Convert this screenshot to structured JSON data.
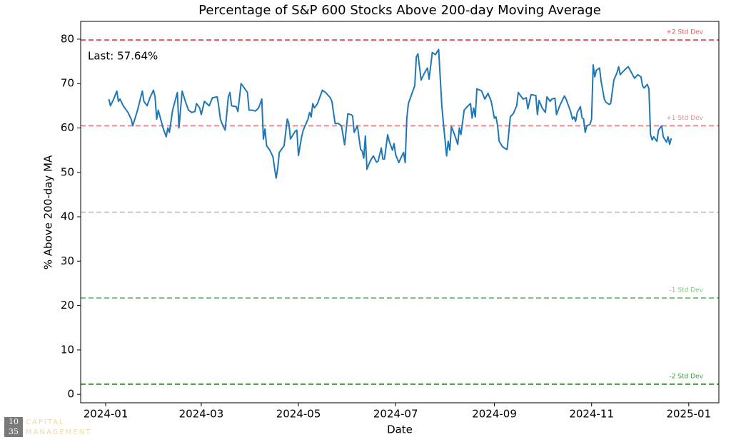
{
  "chart_data": {
    "type": "line",
    "title": "Percentage of S&P 600 Stocks Above 200-day Moving Average",
    "xlabel": "Date",
    "ylabel": "% Above 200-day MA",
    "annotation": "Last: 57.64%",
    "color": "#1f77b4",
    "x": [
      2,
      3,
      5,
      7,
      8,
      9,
      11,
      14,
      16,
      17,
      20,
      23,
      24,
      26,
      28,
      30,
      31,
      32,
      33,
      36,
      38,
      39,
      40,
      42,
      45,
      46,
      48,
      50,
      52,
      54,
      56,
      57,
      59,
      60,
      62,
      65,
      67,
      70,
      71,
      72,
      73,
      75,
      77,
      78,
      79,
      82,
      83,
      85,
      87,
      89,
      90,
      92,
      94,
      96,
      98,
      99,
      100,
      101,
      103,
      105,
      106,
      107,
      108,
      109,
      112,
      114,
      115,
      116,
      119,
      120,
      121,
      123,
      124,
      127,
      128,
      129,
      130,
      131,
      133,
      135,
      136,
      138,
      141,
      142,
      144,
      146,
      148,
      150,
      152,
      154,
      155,
      156,
      158,
      160,
      161,
      162,
      163,
      164,
      166,
      168,
      170,
      171,
      173,
      174,
      175,
      177,
      178,
      180,
      181,
      182,
      184,
      185,
      187,
      188,
      189,
      190,
      192,
      194,
      195,
      196,
      198,
      200,
      202,
      203,
      205,
      207,
      209,
      211,
      212,
      214,
      215,
      216,
      217,
      219,
      221,
      222,
      223,
      225,
      227,
      229,
      230,
      231,
      232,
      233,
      235,
      236,
      238,
      240,
      242,
      244,
      245,
      246,
      247,
      249,
      251,
      252,
      254,
      256,
      258,
      259,
      261,
      262,
      264,
      265,
      267,
      270,
      271,
      272,
      274,
      276,
      277,
      279,
      280,
      282,
      283,
      285,
      287,
      288,
      289,
      290,
      292,
      293,
      294,
      295,
      296,
      298,
      299,
      300,
      301,
      302,
      304,
      305,
      306,
      307,
      308,
      310,
      311,
      313,
      314,
      316,
      317,
      319,
      321,
      322,
      323,
      325,
      327,
      328,
      330,
      331,
      332,
      334,
      336,
      337,
      338,
      340,
      341,
      342,
      343,
      344,
      346,
      347,
      349,
      350,
      352,
      353,
      354,
      355
    ],
    "values": [
      66.5,
      65,
      66.5,
      68.3,
      66,
      66.5,
      65,
      63.5,
      62,
      60.5,
      64,
      68.3,
      66,
      65,
      67,
      68.5,
      67,
      62,
      64,
      60,
      58,
      60,
      59,
      64,
      68,
      60,
      68.3,
      66,
      64,
      63.5,
      63.7,
      65.5,
      64.5,
      63,
      66,
      65,
      66.8,
      67,
      64.8,
      62,
      61,
      59.5,
      67,
      68,
      65,
      64.8,
      63.7,
      70,
      69,
      68,
      64,
      64,
      63.8,
      64.5,
      66.5,
      57.5,
      59.8,
      56,
      55,
      53.5,
      51,
      48.7,
      51,
      54.5,
      56,
      62,
      61,
      57.5,
      59.3,
      59.5,
      53.8,
      58,
      59.5,
      62,
      63.5,
      62.5,
      65.5,
      64.5,
      65.5,
      67.5,
      68.5,
      68,
      66.8,
      66,
      61,
      61,
      60.5,
      56.2,
      63.2,
      63,
      62.7,
      59,
      60.5,
      55.2,
      54.8,
      53.2,
      58.2,
      50.7,
      52.5,
      53.7,
      52.3,
      52.5,
      55.5,
      53,
      53,
      58.5,
      57,
      55,
      56.5,
      54,
      52.2,
      53,
      54.5,
      52.2,
      62,
      65.5,
      67.5,
      69.5,
      76,
      76.7,
      70.8,
      72.3,
      73.5,
      71,
      77,
      76.5,
      77.7,
      65,
      61,
      53.7,
      57,
      55,
      60.3,
      58.5,
      56.3,
      60,
      58.5,
      64,
      64.8,
      65.5,
      62.2,
      64.5,
      62.5,
      68.8,
      68.5,
      68.3,
      66.5,
      67.8,
      66,
      62.2,
      62.5,
      60.5,
      57,
      55.8,
      55.3,
      55.2,
      62.5,
      63.3,
      65,
      68,
      67,
      66.5,
      66.8,
      64.3,
      67.5,
      67.3,
      63,
      66.2,
      64.5,
      63.5,
      67,
      66,
      66.5,
      66.7,
      63,
      65,
      66.5,
      67.2,
      66.5,
      65.5,
      63.5,
      62,
      62.5,
      61.5,
      63.5,
      64.8,
      62.3,
      62,
      59,
      60.5,
      60.8,
      62,
      74.2,
      71.5,
      73,
      73.5,
      70.5,
      66.5,
      65.8,
      65.3,
      65.5,
      70.8,
      72.5,
      73.8,
      72,
      72.8,
      73.5,
      73.8,
      72.5,
      71.8,
      71.2,
      72,
      71.5,
      69.5,
      69,
      69.8,
      68.8,
      58.5,
      57.3,
      58,
      57,
      59.5,
      60.5,
      58,
      56.8,
      58,
      56.3,
      57.64
    ],
    "xlim": [
      -15.7,
      384.9
    ],
    "xticks": [
      {
        "value": 0,
        "label": "2024-01"
      },
      {
        "value": 60,
        "label": "2024-03"
      },
      {
        "value": 121,
        "label": "2024-05"
      },
      {
        "value": 182,
        "label": "2024-07"
      },
      {
        "value": 244,
        "label": "2024-09"
      },
      {
        "value": 305,
        "label": "2024-11"
      },
      {
        "value": 366,
        "label": "2025-01"
      }
    ],
    "ylim": [
      -1.9,
      84
    ],
    "yticks": [
      0,
      10,
      20,
      30,
      40,
      50,
      60,
      70,
      80
    ],
    "hlines": [
      {
        "value": 79.8,
        "label": "+2 Std Dev",
        "color": "#e05a5a"
      },
      {
        "value": 60.5,
        "label": "+1 Std Dev",
        "color": "#ee8a8a"
      },
      {
        "value": 41.0,
        "color": "#c8c8c8"
      },
      {
        "value": 21.7,
        "label": "-1 Std Dev",
        "color": "#7cc47c"
      },
      {
        "value": 2.3,
        "label": "-2 Std Dev",
        "color": "#3a9a3a"
      }
    ],
    "logo": {
      "top_number": "10",
      "bottom_number": "35",
      "top_text": "CAPITAL",
      "bottom_text": "MANAGEMENT"
    }
  }
}
